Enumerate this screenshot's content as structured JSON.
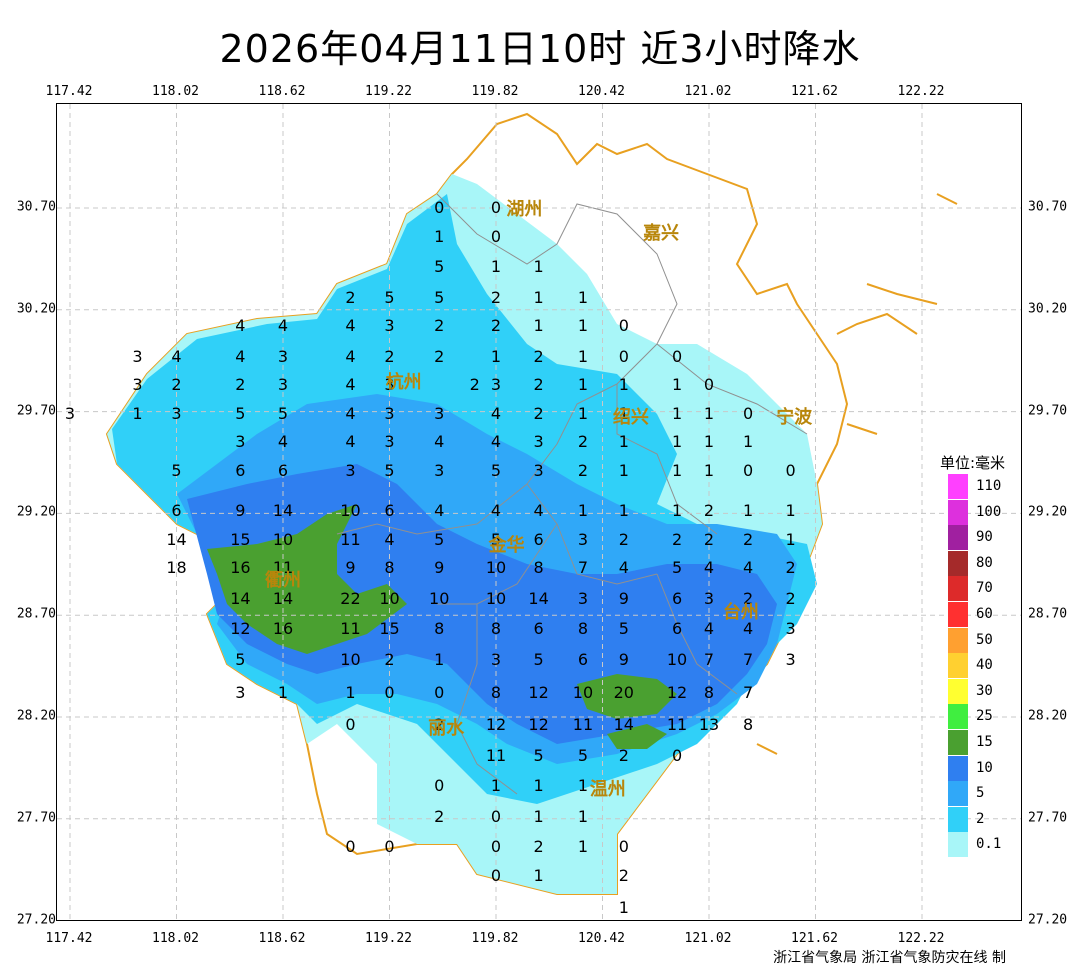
{
  "title": "2026年04月11日10时  近3小时降水",
  "credit": "浙江省气象局 浙江省气象防灾在线 制",
  "axes": {
    "lon_ticks": [
      "117.42",
      "118.02",
      "118.62",
      "119.22",
      "119.82",
      "120.42",
      "121.02",
      "121.62",
      "122.22"
    ],
    "lat_ticks": [
      "30.70",
      "30.20",
      "29.70",
      "29.20",
      "28.70",
      "28.20",
      "27.70",
      "27.20"
    ]
  },
  "cities": [
    {
      "name": "湖州",
      "lon": 119.98,
      "lat": 30.7
    },
    {
      "name": "嘉兴",
      "lon": 120.75,
      "lat": 30.58
    },
    {
      "name": "杭州",
      "lon": 119.3,
      "lat": 29.85
    },
    {
      "name": "绍兴",
      "lon": 120.58,
      "lat": 29.68
    },
    {
      "name": "宁波",
      "lon": 121.5,
      "lat": 29.68
    },
    {
      "name": "金华",
      "lon": 119.88,
      "lat": 29.05
    },
    {
      "name": "衢州",
      "lon": 118.62,
      "lat": 28.88
    },
    {
      "name": "台州",
      "lon": 121.2,
      "lat": 28.72
    },
    {
      "name": "丽水",
      "lon": 119.54,
      "lat": 28.15
    },
    {
      "name": "温州",
      "lon": 120.45,
      "lat": 27.85
    }
  ],
  "stations": [
    {
      "v": "0",
      "lon": 119.5,
      "lat": 30.7
    },
    {
      "v": "0",
      "lon": 119.82,
      "lat": 30.7
    },
    {
      "v": "1",
      "lon": 119.5,
      "lat": 30.56
    },
    {
      "v": "0",
      "lon": 119.82,
      "lat": 30.56
    },
    {
      "v": "5",
      "lon": 119.5,
      "lat": 30.41
    },
    {
      "v": "1",
      "lon": 119.82,
      "lat": 30.41
    },
    {
      "v": "1",
      "lon": 120.06,
      "lat": 30.41
    },
    {
      "v": "2",
      "lon": 119.0,
      "lat": 30.26
    },
    {
      "v": "5",
      "lon": 119.22,
      "lat": 30.26
    },
    {
      "v": "5",
      "lon": 119.5,
      "lat": 30.26
    },
    {
      "v": "2",
      "lon": 119.82,
      "lat": 30.26
    },
    {
      "v": "1",
      "lon": 120.06,
      "lat": 30.26
    },
    {
      "v": "1",
      "lon": 120.31,
      "lat": 30.26
    },
    {
      "v": "4",
      "lon": 118.38,
      "lat": 30.12
    },
    {
      "v": "4",
      "lon": 118.62,
      "lat": 30.12
    },
    {
      "v": "4",
      "lon": 119.0,
      "lat": 30.12
    },
    {
      "v": "3",
      "lon": 119.22,
      "lat": 30.12
    },
    {
      "v": "2",
      "lon": 119.5,
      "lat": 30.12
    },
    {
      "v": "2",
      "lon": 119.82,
      "lat": 30.12
    },
    {
      "v": "1",
      "lon": 120.06,
      "lat": 30.12
    },
    {
      "v": "1",
      "lon": 120.31,
      "lat": 30.12
    },
    {
      "v": "0",
      "lon": 120.54,
      "lat": 30.12
    },
    {
      "v": "3",
      "lon": 117.8,
      "lat": 29.97
    },
    {
      "v": "4",
      "lon": 118.02,
      "lat": 29.97
    },
    {
      "v": "4",
      "lon": 118.38,
      "lat": 29.97
    },
    {
      "v": "3",
      "lon": 118.62,
      "lat": 29.97
    },
    {
      "v": "4",
      "lon": 119.0,
      "lat": 29.97
    },
    {
      "v": "2",
      "lon": 119.22,
      "lat": 29.97
    },
    {
      "v": "2",
      "lon": 119.5,
      "lat": 29.97
    },
    {
      "v": "1",
      "lon": 119.82,
      "lat": 29.97
    },
    {
      "v": "2",
      "lon": 120.06,
      "lat": 29.97
    },
    {
      "v": "1",
      "lon": 120.31,
      "lat": 29.97
    },
    {
      "v": "0",
      "lon": 120.54,
      "lat": 29.97
    },
    {
      "v": "0",
      "lon": 120.84,
      "lat": 29.97
    },
    {
      "v": "3",
      "lon": 117.8,
      "lat": 29.83
    },
    {
      "v": "2",
      "lon": 118.02,
      "lat": 29.83
    },
    {
      "v": "2",
      "lon": 118.38,
      "lat": 29.83
    },
    {
      "v": "3",
      "lon": 118.62,
      "lat": 29.83
    },
    {
      "v": "4",
      "lon": 119.0,
      "lat": 29.83
    },
    {
      "v": "3",
      "lon": 119.22,
      "lat": 29.83
    },
    {
      "v": "2",
      "lon": 119.7,
      "lat": 29.83
    },
    {
      "v": "3",
      "lon": 119.82,
      "lat": 29.83
    },
    {
      "v": "2",
      "lon": 120.06,
      "lat": 29.83
    },
    {
      "v": "1",
      "lon": 120.31,
      "lat": 29.83
    },
    {
      "v": "1",
      "lon": 120.54,
      "lat": 29.83
    },
    {
      "v": "1",
      "lon": 120.84,
      "lat": 29.83
    },
    {
      "v": "0",
      "lon": 121.02,
      "lat": 29.83
    },
    {
      "v": "3",
      "lon": 117.42,
      "lat": 29.69
    },
    {
      "v": "1",
      "lon": 117.8,
      "lat": 29.69
    },
    {
      "v": "3",
      "lon": 118.02,
      "lat": 29.69
    },
    {
      "v": "5",
      "lon": 118.38,
      "lat": 29.69
    },
    {
      "v": "5",
      "lon": 118.62,
      "lat": 29.69
    },
    {
      "v": "4",
      "lon": 119.0,
      "lat": 29.69
    },
    {
      "v": "3",
      "lon": 119.22,
      "lat": 29.69
    },
    {
      "v": "3",
      "lon": 119.5,
      "lat": 29.69
    },
    {
      "v": "4",
      "lon": 119.82,
      "lat": 29.69
    },
    {
      "v": "2",
      "lon": 120.06,
      "lat": 29.69
    },
    {
      "v": "1",
      "lon": 120.31,
      "lat": 29.69
    },
    {
      "v": "1",
      "lon": 120.54,
      "lat": 29.69
    },
    {
      "v": "1",
      "lon": 120.84,
      "lat": 29.69
    },
    {
      "v": "1",
      "lon": 121.02,
      "lat": 29.69
    },
    {
      "v": "0",
      "lon": 121.24,
      "lat": 29.69
    },
    {
      "v": "3",
      "lon": 118.38,
      "lat": 29.55
    },
    {
      "v": "4",
      "lon": 118.62,
      "lat": 29.55
    },
    {
      "v": "4",
      "lon": 119.0,
      "lat": 29.55
    },
    {
      "v": "3",
      "lon": 119.22,
      "lat": 29.55
    },
    {
      "v": "4",
      "lon": 119.5,
      "lat": 29.55
    },
    {
      "v": "4",
      "lon": 119.82,
      "lat": 29.55
    },
    {
      "v": "3",
      "lon": 120.06,
      "lat": 29.55
    },
    {
      "v": "2",
      "lon": 120.31,
      "lat": 29.55
    },
    {
      "v": "1",
      "lon": 120.54,
      "lat": 29.55
    },
    {
      "v": "1",
      "lon": 120.84,
      "lat": 29.55
    },
    {
      "v": "1",
      "lon": 121.02,
      "lat": 29.55
    },
    {
      "v": "1",
      "lon": 121.24,
      "lat": 29.55
    },
    {
      "v": "5",
      "lon": 118.02,
      "lat": 29.41
    },
    {
      "v": "6",
      "lon": 118.38,
      "lat": 29.41
    },
    {
      "v": "6",
      "lon": 118.62,
      "lat": 29.41
    },
    {
      "v": "3",
      "lon": 119.0,
      "lat": 29.41
    },
    {
      "v": "5",
      "lon": 119.22,
      "lat": 29.41
    },
    {
      "v": "3",
      "lon": 119.5,
      "lat": 29.41
    },
    {
      "v": "5",
      "lon": 119.82,
      "lat": 29.41
    },
    {
      "v": "3",
      "lon": 120.06,
      "lat": 29.41
    },
    {
      "v": "2",
      "lon": 120.31,
      "lat": 29.41
    },
    {
      "v": "1",
      "lon": 120.54,
      "lat": 29.41
    },
    {
      "v": "1",
      "lon": 120.84,
      "lat": 29.41
    },
    {
      "v": "1",
      "lon": 121.02,
      "lat": 29.41
    },
    {
      "v": "0",
      "lon": 121.24,
      "lat": 29.41
    },
    {
      "v": "0",
      "lon": 121.48,
      "lat": 29.41
    },
    {
      "v": "6",
      "lon": 118.02,
      "lat": 29.21
    },
    {
      "v": "9",
      "lon": 118.38,
      "lat": 29.21
    },
    {
      "v": "14",
      "lon": 118.62,
      "lat": 29.21
    },
    {
      "v": "10",
      "lon": 119.0,
      "lat": 29.21
    },
    {
      "v": "6",
      "lon": 119.22,
      "lat": 29.21
    },
    {
      "v": "4",
      "lon": 119.5,
      "lat": 29.21
    },
    {
      "v": "4",
      "lon": 119.82,
      "lat": 29.21
    },
    {
      "v": "4",
      "lon": 120.06,
      "lat": 29.21
    },
    {
      "v": "1",
      "lon": 120.31,
      "lat": 29.21
    },
    {
      "v": "1",
      "lon": 120.54,
      "lat": 29.21
    },
    {
      "v": "1",
      "lon": 120.84,
      "lat": 29.21
    },
    {
      "v": "2",
      "lon": 121.02,
      "lat": 29.21
    },
    {
      "v": "1",
      "lon": 121.24,
      "lat": 29.21
    },
    {
      "v": "1",
      "lon": 121.48,
      "lat": 29.21
    },
    {
      "v": "14",
      "lon": 118.02,
      "lat": 29.07
    },
    {
      "v": "15",
      "lon": 118.38,
      "lat": 29.07
    },
    {
      "v": "10",
      "lon": 118.62,
      "lat": 29.07
    },
    {
      "v": "11",
      "lon": 119.0,
      "lat": 29.07
    },
    {
      "v": "4",
      "lon": 119.22,
      "lat": 29.07
    },
    {
      "v": "5",
      "lon": 119.5,
      "lat": 29.07
    },
    {
      "v": "5",
      "lon": 119.82,
      "lat": 29.07
    },
    {
      "v": "6",
      "lon": 120.06,
      "lat": 29.07
    },
    {
      "v": "3",
      "lon": 120.31,
      "lat": 29.07
    },
    {
      "v": "2",
      "lon": 120.54,
      "lat": 29.07
    },
    {
      "v": "2",
      "lon": 120.84,
      "lat": 29.07
    },
    {
      "v": "2",
      "lon": 121.02,
      "lat": 29.07
    },
    {
      "v": "2",
      "lon": 121.24,
      "lat": 29.07
    },
    {
      "v": "1",
      "lon": 121.48,
      "lat": 29.07
    },
    {
      "v": "18",
      "lon": 118.02,
      "lat": 28.93
    },
    {
      "v": "16",
      "lon": 118.38,
      "lat": 28.93
    },
    {
      "v": "11",
      "lon": 118.62,
      "lat": 28.93
    },
    {
      "v": "9",
      "lon": 119.0,
      "lat": 28.93
    },
    {
      "v": "8",
      "lon": 119.22,
      "lat": 28.93
    },
    {
      "v": "9",
      "lon": 119.5,
      "lat": 28.93
    },
    {
      "v": "10",
      "lon": 119.82,
      "lat": 28.93
    },
    {
      "v": "8",
      "lon": 120.06,
      "lat": 28.93
    },
    {
      "v": "7",
      "lon": 120.31,
      "lat": 28.93
    },
    {
      "v": "4",
      "lon": 120.54,
      "lat": 28.93
    },
    {
      "v": "5",
      "lon": 120.84,
      "lat": 28.93
    },
    {
      "v": "4",
      "lon": 121.02,
      "lat": 28.93
    },
    {
      "v": "4",
      "lon": 121.24,
      "lat": 28.93
    },
    {
      "v": "2",
      "lon": 121.48,
      "lat": 28.93
    },
    {
      "v": "14",
      "lon": 118.38,
      "lat": 28.78
    },
    {
      "v": "14",
      "lon": 118.62,
      "lat": 28.78
    },
    {
      "v": "22",
      "lon": 119.0,
      "lat": 28.78
    },
    {
      "v": "10",
      "lon": 119.22,
      "lat": 28.78
    },
    {
      "v": "10",
      "lon": 119.5,
      "lat": 28.78
    },
    {
      "v": "10",
      "lon": 119.82,
      "lat": 28.78
    },
    {
      "v": "14",
      "lon": 120.06,
      "lat": 28.78
    },
    {
      "v": "3",
      "lon": 120.31,
      "lat": 28.78
    },
    {
      "v": "9",
      "lon": 120.54,
      "lat": 28.78
    },
    {
      "v": "6",
      "lon": 120.84,
      "lat": 28.78
    },
    {
      "v": "3",
      "lon": 121.02,
      "lat": 28.78
    },
    {
      "v": "2",
      "lon": 121.24,
      "lat": 28.78
    },
    {
      "v": "2",
      "lon": 121.48,
      "lat": 28.78
    },
    {
      "v": "12",
      "lon": 118.38,
      "lat": 28.63
    },
    {
      "v": "16",
      "lon": 118.62,
      "lat": 28.63
    },
    {
      "v": "11",
      "lon": 119.0,
      "lat": 28.63
    },
    {
      "v": "15",
      "lon": 119.22,
      "lat": 28.63
    },
    {
      "v": "8",
      "lon": 119.5,
      "lat": 28.63
    },
    {
      "v": "8",
      "lon": 119.82,
      "lat": 28.63
    },
    {
      "v": "6",
      "lon": 120.06,
      "lat": 28.63
    },
    {
      "v": "8",
      "lon": 120.31,
      "lat": 28.63
    },
    {
      "v": "5",
      "lon": 120.54,
      "lat": 28.63
    },
    {
      "v": "6",
      "lon": 120.84,
      "lat": 28.63
    },
    {
      "v": "4",
      "lon": 121.02,
      "lat": 28.63
    },
    {
      "v": "4",
      "lon": 121.24,
      "lat": 28.63
    },
    {
      "v": "3",
      "lon": 121.48,
      "lat": 28.63
    },
    {
      "v": "5",
      "lon": 118.38,
      "lat": 28.48
    },
    {
      "v": "10",
      "lon": 119.0,
      "lat": 28.48
    },
    {
      "v": "2",
      "lon": 119.22,
      "lat": 28.48
    },
    {
      "v": "1",
      "lon": 119.5,
      "lat": 28.48
    },
    {
      "v": "3",
      "lon": 119.82,
      "lat": 28.48
    },
    {
      "v": "5",
      "lon": 120.06,
      "lat": 28.48
    },
    {
      "v": "6",
      "lon": 120.31,
      "lat": 28.48
    },
    {
      "v": "9",
      "lon": 120.54,
      "lat": 28.48
    },
    {
      "v": "10",
      "lon": 120.84,
      "lat": 28.48
    },
    {
      "v": "7",
      "lon": 121.02,
      "lat": 28.48
    },
    {
      "v": "7",
      "lon": 121.24,
      "lat": 28.48
    },
    {
      "v": "3",
      "lon": 121.48,
      "lat": 28.48
    },
    {
      "v": "3",
      "lon": 118.38,
      "lat": 28.32
    },
    {
      "v": "1",
      "lon": 118.62,
      "lat": 28.32
    },
    {
      "v": "1",
      "lon": 119.0,
      "lat": 28.32
    },
    {
      "v": "0",
      "lon": 119.22,
      "lat": 28.32
    },
    {
      "v": "0",
      "lon": 119.5,
      "lat": 28.32
    },
    {
      "v": "8",
      "lon": 119.82,
      "lat": 28.32
    },
    {
      "v": "12",
      "lon": 120.06,
      "lat": 28.32
    },
    {
      "v": "10",
      "lon": 120.31,
      "lat": 28.32
    },
    {
      "v": "20",
      "lon": 120.54,
      "lat": 28.32
    },
    {
      "v": "12",
      "lon": 120.84,
      "lat": 28.32
    },
    {
      "v": "8",
      "lon": 121.02,
      "lat": 28.32
    },
    {
      "v": "7",
      "lon": 121.24,
      "lat": 28.32
    },
    {
      "v": "0",
      "lon": 119.0,
      "lat": 28.16
    },
    {
      "v": "2",
      "lon": 119.5,
      "lat": 28.16
    },
    {
      "v": "12",
      "lon": 119.82,
      "lat": 28.16
    },
    {
      "v": "12",
      "lon": 120.06,
      "lat": 28.16
    },
    {
      "v": "11",
      "lon": 120.31,
      "lat": 28.16
    },
    {
      "v": "14",
      "lon": 120.54,
      "lat": 28.16
    },
    {
      "v": "11",
      "lon": 120.84,
      "lat": 28.16
    },
    {
      "v": "13",
      "lon": 121.02,
      "lat": 28.16
    },
    {
      "v": "8",
      "lon": 121.24,
      "lat": 28.16
    },
    {
      "v": "11",
      "lon": 119.82,
      "lat": 28.01
    },
    {
      "v": "5",
      "lon": 120.06,
      "lat": 28.01
    },
    {
      "v": "5",
      "lon": 120.31,
      "lat": 28.01
    },
    {
      "v": "2",
      "lon": 120.54,
      "lat": 28.01
    },
    {
      "v": "0",
      "lon": 120.84,
      "lat": 28.01
    },
    {
      "v": "0",
      "lon": 119.5,
      "lat": 27.86
    },
    {
      "v": "1",
      "lon": 119.82,
      "lat": 27.86
    },
    {
      "v": "1",
      "lon": 120.06,
      "lat": 27.86
    },
    {
      "v": "1",
      "lon": 120.31,
      "lat": 27.86
    },
    {
      "v": "2",
      "lon": 119.5,
      "lat": 27.71
    },
    {
      "v": "0",
      "lon": 119.82,
      "lat": 27.71
    },
    {
      "v": "1",
      "lon": 120.06,
      "lat": 27.71
    },
    {
      "v": "1",
      "lon": 120.31,
      "lat": 27.71
    },
    {
      "v": "0",
      "lon": 119.0,
      "lat": 27.56
    },
    {
      "v": "0",
      "lon": 119.22,
      "lat": 27.56
    },
    {
      "v": "0",
      "lon": 119.82,
      "lat": 27.56
    },
    {
      "v": "2",
      "lon": 120.06,
      "lat": 27.56
    },
    {
      "v": "1",
      "lon": 120.31,
      "lat": 27.56
    },
    {
      "v": "0",
      "lon": 120.54,
      "lat": 27.56
    },
    {
      "v": "0",
      "lon": 119.82,
      "lat": 27.42
    },
    {
      "v": "1",
      "lon": 120.06,
      "lat": 27.42
    },
    {
      "v": "2",
      "lon": 120.54,
      "lat": 27.42
    },
    {
      "v": "1",
      "lon": 120.54,
      "lat": 27.26
    }
  ],
  "legend": {
    "title": "单位:毫米",
    "items": [
      {
        "label": "110",
        "color": "#ff40ff"
      },
      {
        "label": "100",
        "color": "#dd30dd"
      },
      {
        "label": "90",
        "color": "#a020a0"
      },
      {
        "label": "80",
        "color": "#a52a2a"
      },
      {
        "label": "70",
        "color": "#dd2a2a"
      },
      {
        "label": "60",
        "color": "#ff3030"
      },
      {
        "label": "50",
        "color": "#ffa030"
      },
      {
        "label": "40",
        "color": "#ffd030"
      },
      {
        "label": "30",
        "color": "#ffff30"
      },
      {
        "label": "25",
        "color": "#40ee40"
      },
      {
        "label": "15",
        "color": "#4aa030"
      },
      {
        "label": "10",
        "color": "#2f7ff0"
      },
      {
        "label": "5",
        "color": "#30a8f8"
      },
      {
        "label": "2",
        "color": "#30d0f8"
      },
      {
        "label": "0.1",
        "color": "#a8f6f8"
      }
    ]
  }
}
